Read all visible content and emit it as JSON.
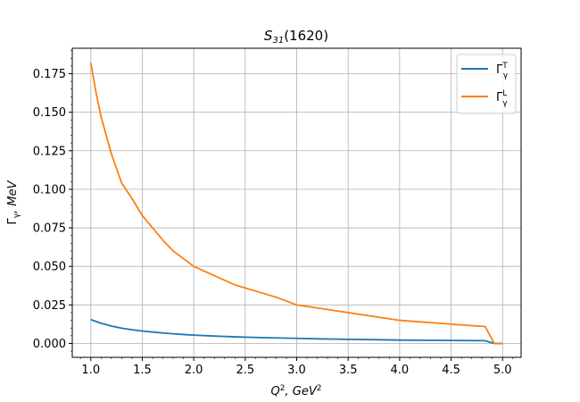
{
  "chart_data": {
    "type": "line",
    "title": {
      "main": "S",
      "sub": "31",
      "rest": "(1620)"
    },
    "xlabel": {
      "q": "Q",
      "q_sup": "2",
      "mid": ", GeV",
      "gev_sup": "2"
    },
    "ylabel": {
      "gamma": "Γ",
      "gamma_sub": "γ",
      "rest": ", MeV"
    },
    "xlim": [
      0.82,
      5.18
    ],
    "ylim": [
      -0.009,
      0.1915
    ],
    "xticks": [
      "1.0",
      "1.5",
      "2.0",
      "2.5",
      "3.0",
      "3.5",
      "4.0",
      "4.5",
      "5.0"
    ],
    "yticks": [
      "0.000",
      "0.025",
      "0.050",
      "0.075",
      "0.100",
      "0.125",
      "0.150",
      "0.175"
    ],
    "grid": true,
    "legend": "top-right",
    "series": [
      {
        "name": "Γ",
        "name_sup": "T",
        "name_sub": "γ",
        "color": "#1f77b4",
        "x": [
          1.0,
          1.1,
          1.2,
          1.3,
          1.4,
          1.5,
          1.6,
          1.7,
          1.8,
          1.9,
          2.0,
          2.2,
          2.4,
          2.6,
          2.8,
          3.0,
          3.2,
          3.4,
          3.6,
          3.8,
          4.0,
          4.2,
          4.4,
          4.6,
          4.83,
          4.92,
          5.0
        ],
        "y": [
          0.0155,
          0.0131,
          0.0113,
          0.0099,
          0.0089,
          0.0081,
          0.0074,
          0.0068,
          0.0063,
          0.0058,
          0.0054,
          0.0048,
          0.0043,
          0.0039,
          0.0036,
          0.0033,
          0.003,
          0.0028,
          0.0026,
          0.0024,
          0.0022,
          0.0021,
          0.002,
          0.0019,
          0.0018,
          0.0,
          0.0
        ]
      },
      {
        "name": "Γ",
        "name_sup": "L",
        "name_sub": "γ",
        "color": "#ff7f0e",
        "x": [
          1.0,
          1.05,
          1.1,
          1.2,
          1.3,
          1.4,
          1.5,
          1.6,
          1.7,
          1.8,
          1.9,
          2.0,
          2.2,
          2.4,
          2.6,
          2.8,
          3.0,
          3.2,
          3.4,
          3.6,
          3.8,
          4.0,
          4.2,
          4.4,
          4.6,
          4.83,
          4.92,
          5.0
        ],
        "y": [
          0.182,
          0.163,
          0.147,
          0.123,
          0.104,
          0.094,
          0.083,
          0.075,
          0.067,
          0.06,
          0.055,
          0.05,
          0.044,
          0.038,
          0.034,
          0.03,
          0.025,
          0.023,
          0.021,
          0.019,
          0.017,
          0.015,
          0.014,
          0.013,
          0.012,
          0.011,
          0.0,
          0.0
        ]
      }
    ]
  }
}
